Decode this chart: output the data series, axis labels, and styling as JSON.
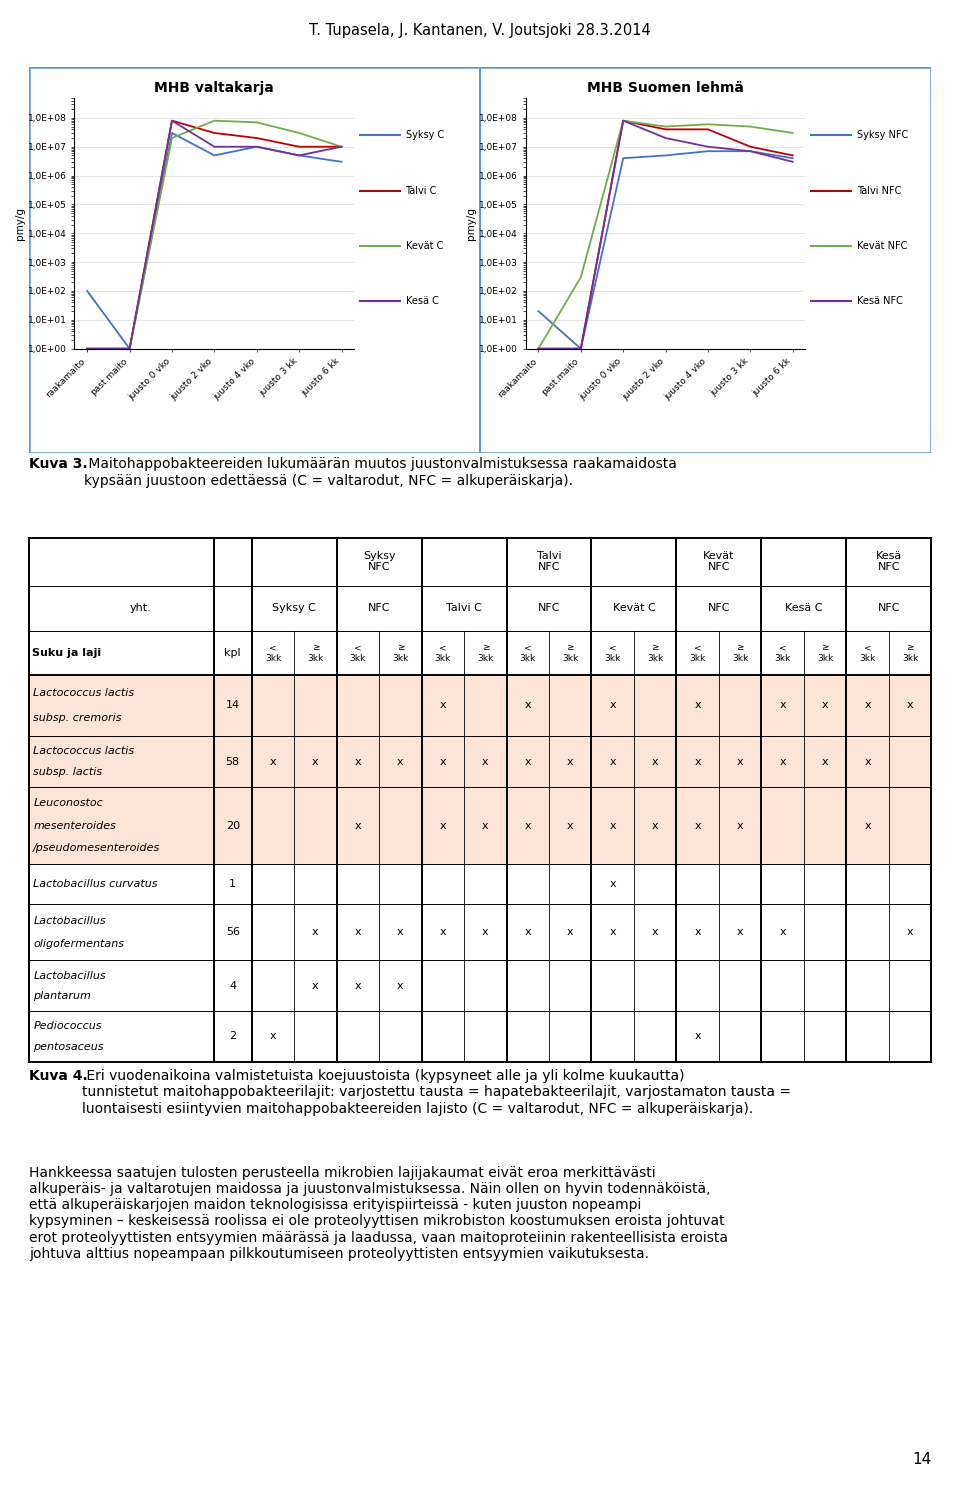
{
  "header_text": "T. Tupasela, J. Kantanen, V. Joutsjoki 28.3.2014",
  "chart1_title": "MHB valtakarja",
  "chart2_title": "MHB Suomen lehmä",
  "ylabel": "pmy/g",
  "x_labels": [
    "raakamaito",
    "past.maito",
    "juusto 0 vko",
    "juusto 2 vko",
    "juusto 4 vko",
    "juusto 3 kk",
    "juusto 6 kk"
  ],
  "chart1_series": {
    "Syksy C": [
      100,
      1,
      30000000,
      5000000,
      10000000,
      5000000,
      3000000
    ],
    "Talvi C": [
      1,
      1,
      80000000,
      30000000,
      20000000,
      10000000,
      10000000
    ],
    "Kevät C": [
      1,
      1,
      20000000,
      80000000,
      70000000,
      30000000,
      10000000
    ],
    "Kesä C": [
      1,
      1,
      80000000,
      10000000,
      10000000,
      5000000,
      10000000
    ]
  },
  "chart2_series": {
    "Syksy NFC": [
      20,
      1,
      4000000,
      5000000,
      7000000,
      7000000,
      4000000
    ],
    "Talvi NFC": [
      1,
      1,
      80000000,
      40000000,
      40000000,
      10000000,
      5000000
    ],
    "Kevät NFC": [
      1,
      300,
      80000000,
      50000000,
      60000000,
      50000000,
      30000000
    ],
    "Kesä NFC": [
      1,
      1,
      80000000,
      20000000,
      10000000,
      7000000,
      3000000
    ]
  },
  "chart1_colors": [
    "#4472C4",
    "#C00000",
    "#70AD47",
    "#7030A0"
  ],
  "chart2_colors": [
    "#4472C4",
    "#C00000",
    "#70AD47",
    "#7030A0"
  ],
  "fig3_caption_bold": "Kuva 3.",
  "fig3_caption_normal": " Maitohappobakteereiden lukumäärän muutos juustonvalmistuksessa raakamaidosta\nkypsään juustoon edettäessä (C = valtarodut, NFC = alkuperäiskarja).",
  "species": [
    {
      "name": "Lactococcus lactis\nsubsp. cremoris",
      "n": "14",
      "highlighted": true,
      "marks": [
        0,
        0,
        0,
        0,
        1,
        0,
        1,
        0,
        1,
        0,
        1,
        0,
        1,
        1,
        1,
        1
      ]
    },
    {
      "name": "Lactococcus lactis\nsubsp. lactis",
      "n": "58",
      "highlighted": true,
      "marks": [
        1,
        1,
        1,
        1,
        1,
        1,
        1,
        1,
        1,
        1,
        1,
        1,
        1,
        1,
        1,
        0
      ]
    },
    {
      "name": "Leuconostoc\nmesenteroides\n/pseudomesenteroides",
      "n": "20",
      "highlighted": true,
      "marks": [
        0,
        0,
        1,
        0,
        1,
        1,
        1,
        1,
        1,
        1,
        1,
        1,
        0,
        0,
        1,
        0
      ]
    },
    {
      "name": "Lactobacillus curvatus",
      "n": "1",
      "highlighted": false,
      "marks": [
        0,
        0,
        0,
        0,
        0,
        0,
        0,
        0,
        1,
        0,
        0,
        0,
        0,
        0,
        0,
        0
      ]
    },
    {
      "name": "Lactobacillus\noligofermentans",
      "n": "56",
      "highlighted": false,
      "marks": [
        0,
        1,
        1,
        1,
        1,
        1,
        1,
        1,
        1,
        1,
        1,
        1,
        1,
        0,
        0,
        1
      ]
    },
    {
      "name": "Lactobacillus\nplantarum",
      "n": "4",
      "highlighted": false,
      "marks": [
        0,
        1,
        1,
        1,
        0,
        0,
        0,
        0,
        0,
        0,
        0,
        0,
        0,
        0,
        0,
        0
      ]
    },
    {
      "name": "Pediococcus\npentosaceus",
      "n": "2",
      "highlighted": false,
      "marks": [
        1,
        0,
        0,
        0,
        0,
        0,
        0,
        0,
        0,
        0,
        1,
        0,
        0,
        0,
        0,
        0
      ]
    }
  ],
  "fig4_caption_bold": "Kuva 4.",
  "fig4_caption_normal": " Eri vuodenaikoina valmistetuista koejuustoista (kypsyneet alle ja yli kolme kuukautta)\ntunnistetut maitohappobakteerilajit: varjostettu tausta = hapatebakteerilajit, varjostamaton tausta =\nluontaisesti esiintyvien maitohappobakteereiden lajisto (C = valtarodut, NFC = alkuperäiskarja).",
  "body_text": "Hankkeessa saatujen tulosten perusteella mikrobien lajijakaumat eivät eroa merkittävästi\nalkuperäis- ja valtarotujen maidossa ja juustonvalmistuksessa. Näin ollen on hyvin todennäköistä,\nettä alkuperäiskarjojen maidon teknologisissa erityispiirteissä - kuten juuston nopeampi\nkypsyminen – keskeisessä roolissa ei ole proteolyyttisen mikrobiston koostumuksen eroista johtuvat\nerot proteolyyttisten entsyymien määrässä ja laadussa, vaan maitoproteiinin rakenteellisista eroista\njohtuva alttius nopeampaan pilkkoutumiseen proteolyyttisten entsyymien vaikutuksesta.",
  "page_number": "14",
  "border_color": "#5B9BD5",
  "highlight_color": "#FCE4D6"
}
